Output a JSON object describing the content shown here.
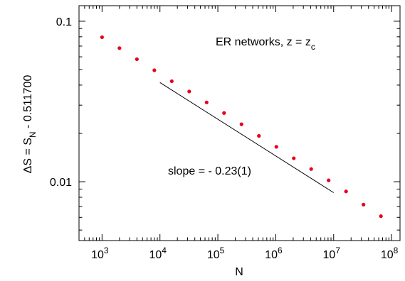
{
  "chart_data": {
    "type": "scatter",
    "xscale": "log",
    "yscale": "log",
    "xlim": [
      400,
      140000000
    ],
    "ylim": [
      0.0043,
      0.125
    ],
    "xlabel": "N",
    "ylabel": {
      "prefix": "ΔS  =  S",
      "sub": "N",
      "suffix": "  - 0.511700"
    },
    "annotation": {
      "prefix": "ER networks,   z  =  z",
      "sub": "c"
    },
    "x_ticks": [
      {
        "value": 1000,
        "base": "10",
        "exp": "3"
      },
      {
        "value": 10000,
        "base": "10",
        "exp": "4"
      },
      {
        "value": 100000,
        "base": "10",
        "exp": "5"
      },
      {
        "value": 1000000,
        "base": "10",
        "exp": "6"
      },
      {
        "value": 10000000,
        "base": "10",
        "exp": "7"
      },
      {
        "value": 100000000,
        "base": "10",
        "exp": "8"
      }
    ],
    "y_ticks": [
      {
        "value": 0.1,
        "label": "0.1"
      },
      {
        "value": 0.01,
        "label": "0.01"
      }
    ],
    "series": [
      {
        "color": "#e8001a",
        "points": [
          [
            1000,
            0.0795
          ],
          [
            2000,
            0.068
          ],
          [
            4000,
            0.058
          ],
          [
            8000,
            0.0495
          ],
          [
            16000,
            0.0423
          ],
          [
            32000,
            0.0365
          ],
          [
            64000,
            0.0312
          ],
          [
            128000,
            0.0268
          ],
          [
            256000,
            0.0228
          ],
          [
            512000,
            0.0193
          ],
          [
            1024000,
            0.0165
          ],
          [
            2048000,
            0.014
          ],
          [
            4096000,
            0.012
          ],
          [
            8192000,
            0.0102
          ],
          [
            16384000,
            0.0087
          ],
          [
            32768000,
            0.0072
          ],
          [
            65536000,
            0.0061
          ]
        ]
      }
    ],
    "fit_line": {
      "color": "#000000",
      "from": [
        10000,
        0.0415
      ],
      "to": [
        10000000,
        0.00855
      ],
      "label": "slope = - 0.23(1)"
    }
  }
}
